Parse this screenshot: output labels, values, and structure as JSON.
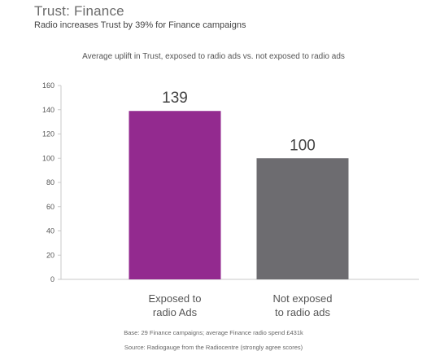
{
  "header": {
    "title": "Trust: Finance",
    "subtitle": "Radio increases Trust by 39% for Finance campaigns"
  },
  "footnotes": {
    "base": "Base: 29 Finance campaigns; average Finance radio spend £431k",
    "source": "Source: Radiogauge from the Radiocentre (strongly agree scores)"
  },
  "chart_data": {
    "type": "bar",
    "title": "Average uplift in Trust, exposed to radio ads vs. not exposed to radio ads",
    "categories": [
      [
        "Exposed to",
        "radio Ads"
      ],
      [
        "Not exposed",
        "to radio ads"
      ]
    ],
    "values": [
      139,
      100
    ],
    "colors": [
      "#932a8f",
      "#6d6c70"
    ],
    "ylim": [
      0,
      160
    ],
    "yticks": [
      0,
      20,
      40,
      60,
      80,
      100,
      120,
      140,
      160
    ],
    "grid": false,
    "legend": "none"
  }
}
